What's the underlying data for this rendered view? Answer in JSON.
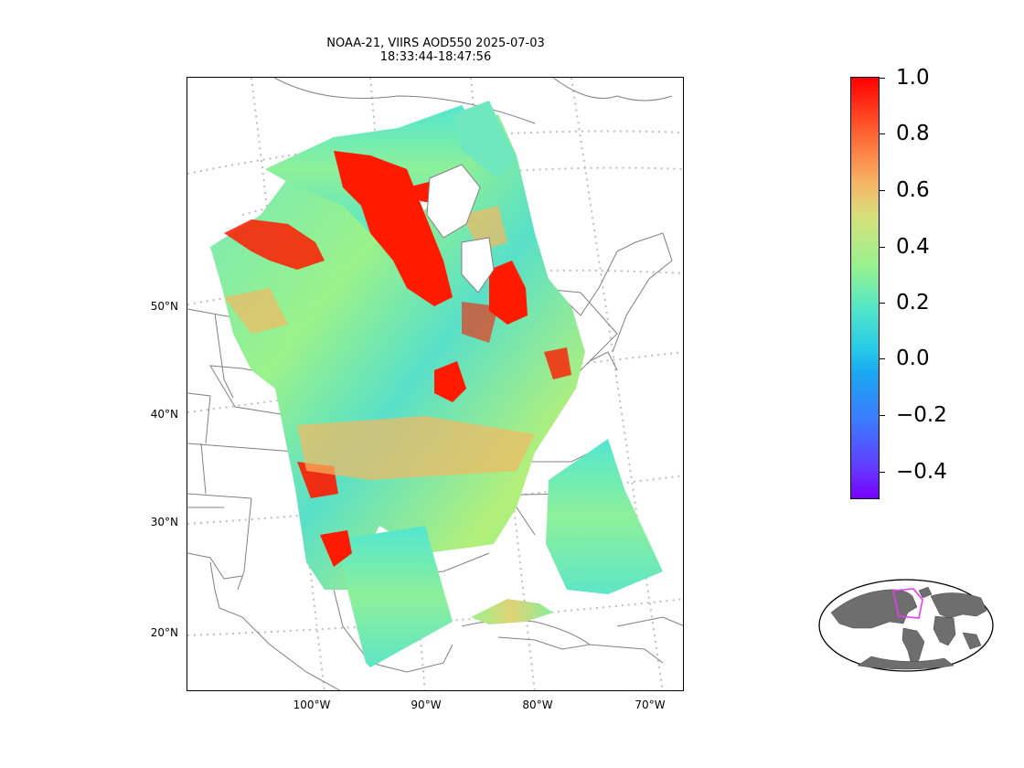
{
  "title": {
    "line1": "NOAA-21, VIIRS AOD550 2025-07-03",
    "line2": "18:33:44-18:47:56"
  },
  "map": {
    "lat_labels": [
      "50°N",
      "40°N",
      "30°N",
      "20°N"
    ],
    "lon_labels": [
      "100°W",
      "90°W",
      "80°W",
      "70°W"
    ],
    "fill_colors": {
      "low": "#58e8c8",
      "mid": "#9af28a",
      "high": "#f5b861",
      "max": "#ff1a00",
      "land_line": "#808080",
      "graticule": "#bdbdbd"
    }
  },
  "colorbar": {
    "ticks": [
      "1.0",
      "0.8",
      "0.6",
      "0.4",
      "0.2",
      "0.0",
      "−0.2",
      "−0.4"
    ],
    "range": [
      -0.5,
      1.0
    ],
    "colormap": "rainbow"
  },
  "inset": {
    "land_color": "#6e6e6e",
    "box_color": "#e83cf0"
  }
}
